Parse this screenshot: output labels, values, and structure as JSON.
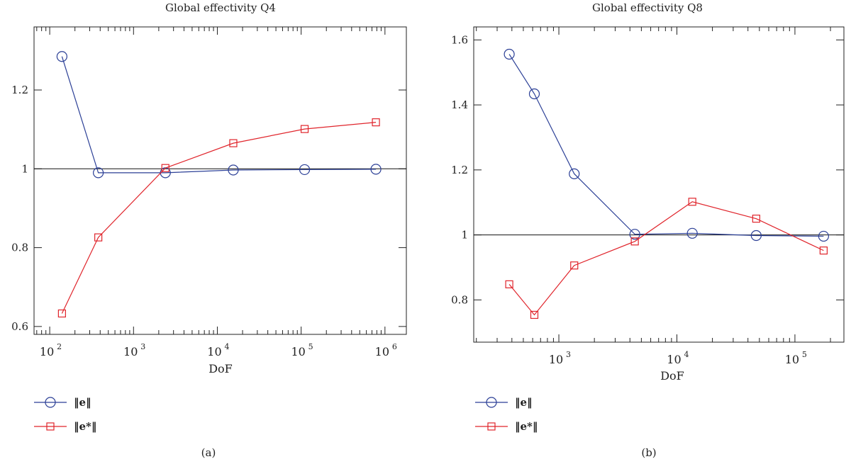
{
  "charts": [
    {
      "panel_label": "(a)",
      "chart_data": {
        "type": "line",
        "title": "Global effectivity Q4",
        "xlabel": "DoF",
        "ylabel": "",
        "xscale": "log",
        "xlim": [
          65,
          1800000
        ],
        "ylim": [
          0.58,
          1.36
        ],
        "x_tick_exponents": [
          2,
          3,
          4,
          5,
          6
        ],
        "y_ticks": [
          0.6,
          0.8,
          1,
          1.2
        ],
        "y_tick_labels": [
          "0.6",
          "0.8",
          "1",
          "1.2"
        ],
        "reference_line": 1,
        "legend_position": "bottom-left, below plot",
        "series": [
          {
            "legend": "‖e‖",
            "marker": "circle",
            "color": "#2b3f96",
            "x": [
              140,
              380,
              2400,
              15500,
              110000,
              780000
            ],
            "y": [
              1.285,
              0.99,
              0.99,
              0.997,
              0.998,
              0.999
            ]
          },
          {
            "legend": "‖e*‖",
            "marker": "square",
            "color": "#e0242b",
            "x": [
              140,
              380,
              2400,
              15500,
              110000,
              780000
            ],
            "y": [
              0.633,
              0.826,
              1.002,
              1.065,
              1.101,
              1.118
            ]
          }
        ]
      }
    },
    {
      "panel_label": "(b)",
      "chart_data": {
        "type": "line",
        "title": "Global effectivity Q8",
        "xlabel": "DoF",
        "ylabel": "",
        "xscale": "log",
        "xlim": [
          190,
          260000
        ],
        "ylim": [
          0.67,
          1.64
        ],
        "x_tick_exponents": [
          3,
          4,
          5
        ],
        "y_ticks": [
          0.8,
          1,
          1.2,
          1.4,
          1.6
        ],
        "y_tick_labels": [
          "0.8",
          "1",
          "1.2",
          "1.4",
          "1.6"
        ],
        "reference_line": 1,
        "legend_position": "bottom-left, below plot",
        "series": [
          {
            "legend": "‖e‖",
            "marker": "circle",
            "color": "#2b3f96",
            "x": [
              380,
              620,
              1350,
              4400,
              13500,
              47000,
              175000
            ],
            "y": [
              1.556,
              1.434,
              1.188,
              1.002,
              1.005,
              0.998,
              0.996
            ]
          },
          {
            "legend": "‖e*‖",
            "marker": "square",
            "color": "#e0242b",
            "x": [
              380,
              620,
              1350,
              4400,
              13500,
              47000,
              175000
            ],
            "y": [
              0.848,
              0.754,
              0.906,
              0.98,
              1.102,
              1.05,
              0.952
            ]
          }
        ]
      }
    }
  ]
}
